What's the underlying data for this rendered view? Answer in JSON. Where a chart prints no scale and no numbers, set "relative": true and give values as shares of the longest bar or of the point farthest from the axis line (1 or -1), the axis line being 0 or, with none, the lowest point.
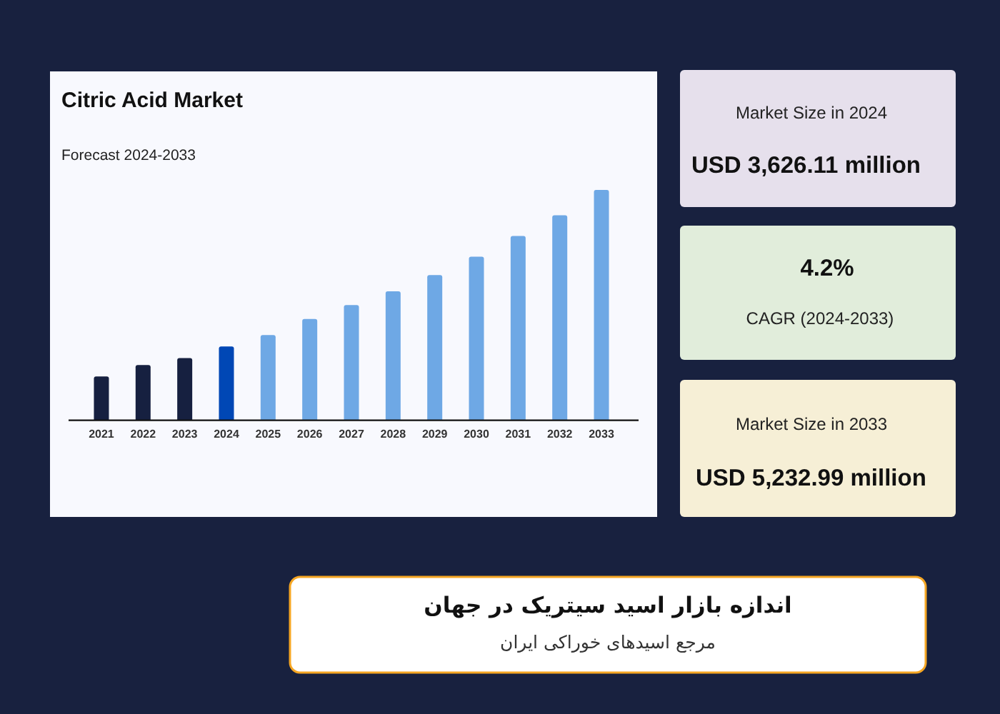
{
  "chart_data": [
    {
      "type": "bar",
      "title": "Citric Acid Market",
      "subtitle": "Forecast 2024-2033",
      "categories": [
        "2021",
        "2022",
        "2023",
        "2024",
        "2025",
        "2026",
        "2027",
        "2028",
        "2029",
        "2030",
        "2031",
        "2032",
        "2033"
      ],
      "values": [
        0.19,
        0.24,
        0.27,
        0.32,
        0.37,
        0.44,
        0.5,
        0.56,
        0.63,
        0.71,
        0.8,
        0.89,
        1
      ],
      "colors": [
        "#162040",
        "#162040",
        "#162040",
        "#0047b5",
        "#6ea8e5",
        "#6ea8e5",
        "#6ea8e5",
        "#6ea8e5",
        "#6ea8e5",
        "#6ea8e5",
        "#6ea8e5",
        "#6ea8e5",
        "#6ea8e5"
      ],
      "relative": true
    },
    {
      "type": "other",
      "title": "Market Size in 2024",
      "annotations": [
        "USD 3,626.11 million"
      ]
    },
    {
      "type": "other",
      "title": "CAGR (2024-2033)",
      "annotations": [
        "4.2%"
      ]
    },
    {
      "type": "other",
      "title": "Market Size in 2033",
      "annotations": [
        "USD 5,232.99 million"
      ]
    },
    {
      "type": "other",
      "title": "اندازه بازار اسید سیتریک در جهان",
      "subtitle": "مرجع اسیدهای خوراکی ایران"
    }
  ]
}
